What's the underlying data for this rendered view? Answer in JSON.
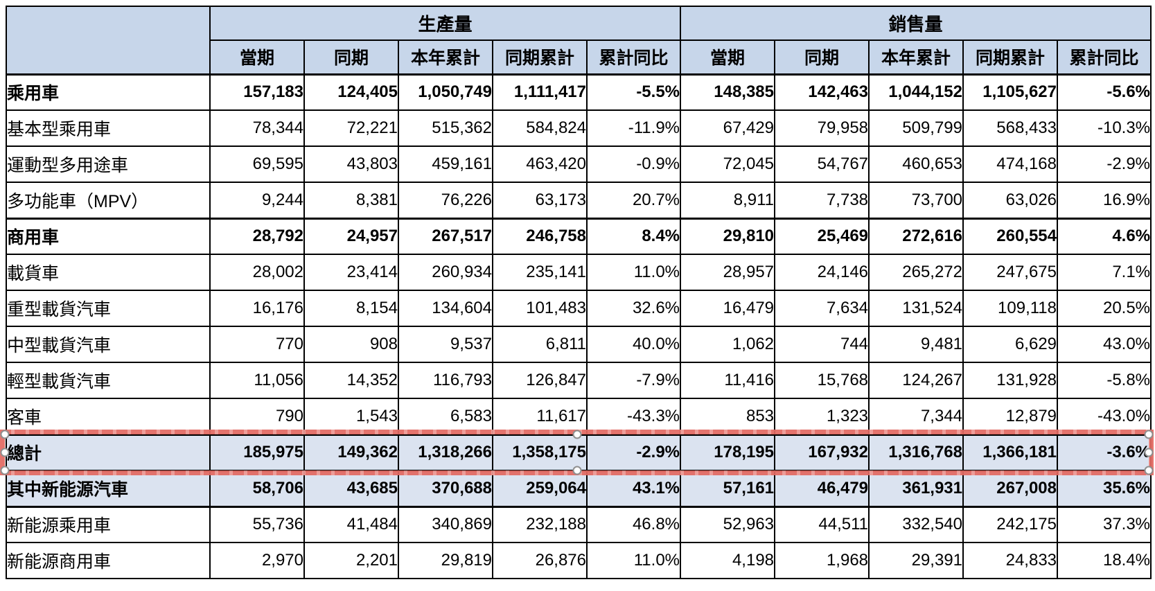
{
  "table": {
    "groups": [
      {
        "label": "生產量"
      },
      {
        "label": "銷售量"
      }
    ],
    "sub_headers": [
      "當期",
      "同期",
      "本年累計",
      "同期累計",
      "累計同比"
    ],
    "rows": [
      {
        "label": "乘用車",
        "level": 0,
        "bold": true,
        "highlight": false,
        "selected": false,
        "section": true,
        "values": [
          "157,183",
          "124,405",
          "1,050,749",
          "1,111,417",
          "-5.5%",
          "148,385",
          "142,463",
          "1,044,152",
          "1,105,627",
          "-5.6%"
        ]
      },
      {
        "label": "基本型乘用車",
        "level": 1,
        "bold": false,
        "highlight": false,
        "selected": false,
        "section": false,
        "values": [
          "78,344",
          "72,221",
          "515,362",
          "584,824",
          "-11.9%",
          "67,429",
          "79,958",
          "509,799",
          "568,433",
          "-10.3%"
        ]
      },
      {
        "label": "運動型多用途車",
        "level": 1,
        "bold": false,
        "highlight": false,
        "selected": false,
        "section": false,
        "values": [
          "69,595",
          "43,803",
          "459,161",
          "463,420",
          "-0.9%",
          "72,045",
          "54,767",
          "460,653",
          "474,168",
          "-2.9%"
        ]
      },
      {
        "label": "多功能車（MPV）",
        "level": 1,
        "bold": false,
        "highlight": false,
        "selected": false,
        "section": false,
        "values": [
          "9,244",
          "8,381",
          "76,226",
          "63,173",
          "20.7%",
          "8,911",
          "7,738",
          "73,700",
          "63,026",
          "16.9%"
        ]
      },
      {
        "label": "商用車",
        "level": 0,
        "bold": true,
        "highlight": false,
        "selected": false,
        "section": true,
        "values": [
          "28,792",
          "24,957",
          "267,517",
          "246,758",
          "8.4%",
          "29,810",
          "25,469",
          "272,616",
          "260,554",
          "4.6%"
        ]
      },
      {
        "label": "載貨車",
        "level": 1,
        "bold": false,
        "highlight": false,
        "selected": false,
        "section": false,
        "values": [
          "28,002",
          "23,414",
          "260,934",
          "235,141",
          "11.0%",
          "28,957",
          "24,146",
          "265,272",
          "247,675",
          "7.1%"
        ]
      },
      {
        "label": "重型載貨汽車",
        "level": 2,
        "bold": false,
        "highlight": false,
        "selected": false,
        "section": false,
        "values": [
          "16,176",
          "8,154",
          "134,604",
          "101,483",
          "32.6%",
          "16,479",
          "7,634",
          "131,524",
          "109,118",
          "20.5%"
        ]
      },
      {
        "label": "中型載貨汽車",
        "level": 2,
        "bold": false,
        "highlight": false,
        "selected": false,
        "section": false,
        "values": [
          "770",
          "908",
          "9,537",
          "6,811",
          "40.0%",
          "1,062",
          "744",
          "9,481",
          "6,629",
          "43.0%"
        ]
      },
      {
        "label": "輕型載貨汽車",
        "level": 2,
        "bold": false,
        "highlight": false,
        "selected": false,
        "section": false,
        "values": [
          "11,056",
          "14,352",
          "116,793",
          "126,847",
          "-7.9%",
          "11,416",
          "15,768",
          "124,267",
          "131,928",
          "-5.8%"
        ]
      },
      {
        "label": "客車",
        "level": 1,
        "bold": false,
        "highlight": false,
        "selected": false,
        "section": false,
        "values": [
          "790",
          "1,543",
          "6,583",
          "11,617",
          "-43.3%",
          "853",
          "1,323",
          "7,344",
          "12,879",
          "-43.0%"
        ]
      },
      {
        "label": "總計",
        "level": 0,
        "bold": true,
        "highlight": true,
        "selected": true,
        "section": true,
        "values": [
          "185,975",
          "149,362",
          "1,318,266",
          "1,358,175",
          "-2.9%",
          "178,195",
          "167,932",
          "1,316,768",
          "1,366,181",
          "-3.6%"
        ]
      },
      {
        "label": "其中新能源汽車",
        "level": 0,
        "bold": true,
        "highlight": true,
        "selected": false,
        "section": true,
        "values": [
          "58,706",
          "43,685",
          "370,688",
          "259,064",
          "43.1%",
          "57,161",
          "46,479",
          "361,931",
          "267,008",
          "35.6%"
        ]
      },
      {
        "label": "新能源乘用車",
        "level": 1,
        "bold": false,
        "highlight": false,
        "selected": false,
        "section": true,
        "values": [
          "55,736",
          "41,484",
          "340,869",
          "232,188",
          "46.8%",
          "52,963",
          "44,511",
          "332,540",
          "242,175",
          "37.3%"
        ]
      },
      {
        "label": "新能源商用車",
        "level": 1,
        "bold": false,
        "highlight": false,
        "selected": false,
        "section": false,
        "values": [
          "2,970",
          "2,201",
          "29,819",
          "26,876",
          "11.0%",
          "4,198",
          "1,968",
          "29,391",
          "24,833",
          "18.4%"
        ]
      }
    ],
    "colors": {
      "header_bg": "#c7d6ea",
      "highlight_bg": "#dbe3f0",
      "border": "#000000",
      "selection_red": "#e26962",
      "handle_fill": "#ffffff",
      "handle_stroke": "#8f8f8f"
    }
  },
  "selection": {
    "target_row": "總計",
    "handle_count": 8
  }
}
